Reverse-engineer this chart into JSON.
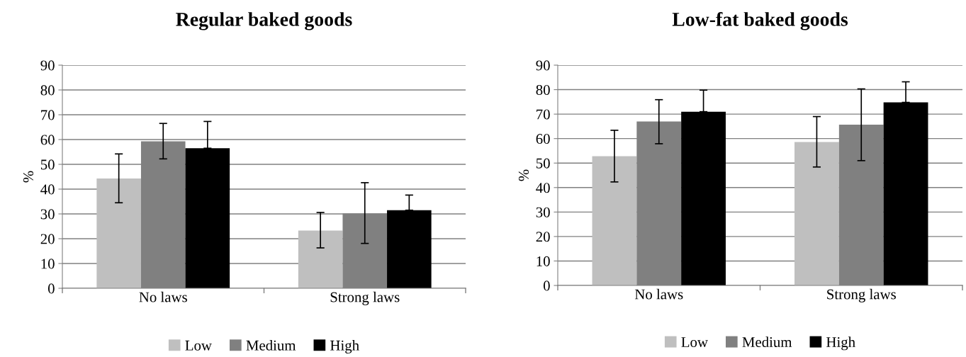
{
  "chart_data": [
    {
      "type": "bar",
      "title": "Regular baked goods",
      "ylabel": "%",
      "categories": [
        "No laws",
        "Strong laws"
      ],
      "ylim": [
        0,
        90
      ],
      "yticks": [
        0,
        10,
        20,
        30,
        40,
        50,
        60,
        70,
        80,
        90
      ],
      "grid": "y",
      "legend": "bottom",
      "series": [
        {
          "name": "Low",
          "color": "#bfbfbf",
          "values": [
            44.3,
            23.3
          ],
          "errors": [
            [
              34.5,
              54.2
            ],
            [
              16.3,
              30.6
            ]
          ]
        },
        {
          "name": "Medium",
          "color": "#808080",
          "values": [
            59.3,
            30.2
          ],
          "errors": [
            [
              52.2,
              66.5
            ],
            [
              18.1,
              42.6
            ]
          ]
        },
        {
          "name": "High",
          "color": "#000000",
          "values": [
            56.5,
            31.5
          ],
          "errors": [
            [
              56.5,
              67.3
            ],
            [
              31.5,
              37.6
            ]
          ]
        }
      ]
    },
    {
      "type": "bar",
      "title": "Low-fat baked goods",
      "ylabel": "%",
      "categories": [
        "No laws",
        "Strong laws"
      ],
      "ylim": [
        0,
        90
      ],
      "yticks": [
        0,
        10,
        20,
        30,
        40,
        50,
        60,
        70,
        80,
        90
      ],
      "grid": "y",
      "legend": "bottom",
      "series": [
        {
          "name": "Low",
          "color": "#bfbfbf",
          "values": [
            52.8,
            58.6
          ],
          "errors": [
            [
              42.3,
              63.4
            ],
            [
              48.4,
              69.0
            ]
          ]
        },
        {
          "name": "Medium",
          "color": "#808080",
          "values": [
            67.0,
            65.7
          ],
          "errors": [
            [
              57.9,
              75.9
            ],
            [
              51.0,
              80.3
            ]
          ]
        },
        {
          "name": "High",
          "color": "#000000",
          "values": [
            71.0,
            74.8
          ],
          "errors": [
            [
              71.0,
              79.8
            ],
            [
              74.8,
              83.2
            ]
          ]
        }
      ]
    }
  ]
}
